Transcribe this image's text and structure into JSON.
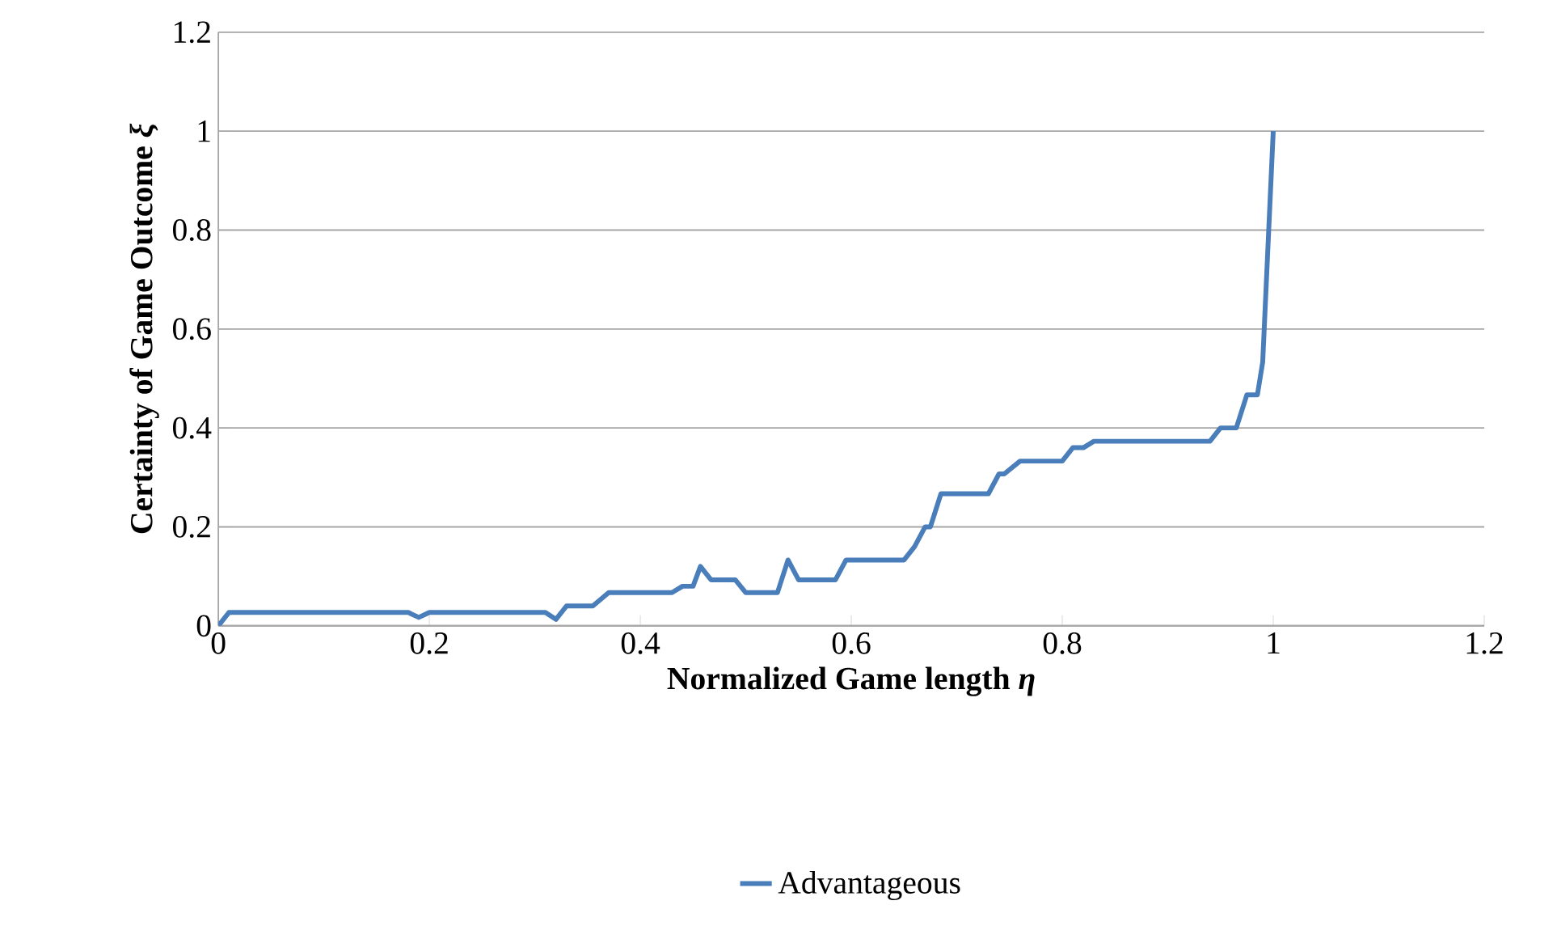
{
  "chart_data": {
    "type": "line",
    "xlabel": "Normalized Game length *η*",
    "ylabel": "Certainty of Game Outcome *ξ*",
    "xlim": [
      0,
      1.2
    ],
    "ylim": [
      0,
      1.2
    ],
    "xticks": [
      0,
      0.2,
      0.4,
      0.6,
      0.8,
      1,
      1.2
    ],
    "yticks": [
      0,
      0.2,
      0.4,
      0.6,
      0.8,
      1,
      1.2
    ],
    "grid": "y",
    "legend": "bottom",
    "marker": "none",
    "line_style": "solid",
    "series": [
      {
        "name": "Advantageous",
        "color": "#4a7ebb",
        "x": [
          0,
          0.01,
          0.18,
          0.19,
          0.2,
          0.31,
          0.32,
          0.33,
          0.355,
          0.37,
          0.43,
          0.44,
          0.45,
          0.457,
          0.467,
          0.49,
          0.5,
          0.53,
          0.54,
          0.55,
          0.585,
          0.595,
          0.65,
          0.66,
          0.67,
          0.675,
          0.685,
          0.73,
          0.74,
          0.745,
          0.76,
          0.8,
          0.81,
          0.82,
          0.83,
          0.94,
          0.95,
          0.965,
          0.975,
          0.985,
          0.99,
          1.0
        ],
        "values": [
          0,
          0.027,
          0.027,
          0.017,
          0.027,
          0.027,
          0.013,
          0.04,
          0.04,
          0.067,
          0.067,
          0.08,
          0.08,
          0.12,
          0.093,
          0.093,
          0.067,
          0.067,
          0.133,
          0.093,
          0.093,
          0.133,
          0.133,
          0.16,
          0.2,
          0.2,
          0.267,
          0.267,
          0.307,
          0.307,
          0.333,
          0.333,
          0.36,
          0.36,
          0.373,
          0.373,
          0.4,
          0.4,
          0.467,
          0.467,
          0.533,
          1.0
        ]
      }
    ]
  }
}
